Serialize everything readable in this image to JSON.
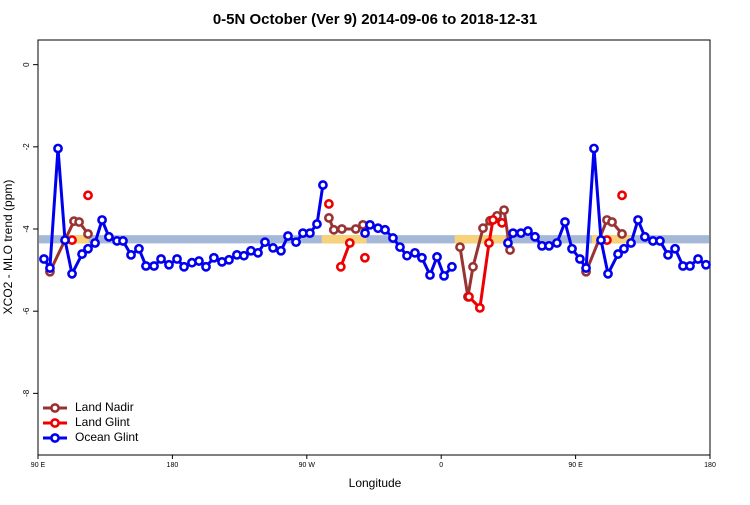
{
  "chart_data": {
    "type": "line",
    "title": "0-5N October (Ver 9)   2014-09-06 to 2018-12-31",
    "x_label": "Longitude",
    "y_label": "XCO2 - MLO trend (ppm)",
    "xlim": [
      90,
      540
    ],
    "ylim": [
      -9.5,
      0.6
    ],
    "xticks": [
      {
        "value": 90,
        "label": "90 E"
      },
      180,
      {
        "value": 270,
        "label": "90 W"
      },
      0,
      {
        "value": 450,
        "label": "90 E"
      },
      180
    ],
    "yticks": [
      0,
      -2,
      -4,
      -6,
      -8
    ],
    "legend": "bottom-left",
    "band": {
      "low": -4.35,
      "high": -4.15,
      "color": "#a5b8d8"
    },
    "highlights": {
      "color": "#f7d27a",
      "ranges": [
        [
          111,
          124
        ],
        [
          280,
          310
        ],
        [
          369,
          403
        ],
        [
          461,
          487
        ]
      ]
    },
    "series": [
      {
        "name": "Land Nadir",
        "color": "#993333",
        "x": [
          98.0,
          114.1,
          117.5,
          123.5,
          null,
          284.8,
          288.1,
          293.5,
          302.8,
          307.6,
          null,
          372.6,
          377.9,
          381.3,
          388.0,
          392.7,
          397.4,
          402.1,
          406.1,
          null,
          457.0,
          471.0,
          474.4,
          481.1
        ],
        "values": [
          -5.04,
          -3.81,
          -3.83,
          -4.12,
          null,
          -3.73,
          -4.02,
          -4.0,
          -4.0,
          -3.9,
          null,
          -4.44,
          -5.65,
          -4.92,
          -3.98,
          -3.8,
          -3.68,
          -3.54,
          -4.51,
          null,
          -5.04,
          -3.78,
          -3.83,
          -4.12
        ]
      },
      {
        "name": "Land Glint",
        "color": "#ee0000",
        "x": [
          112.8,
          null,
          123.5,
          null,
          284.8,
          null,
          292.8,
          298.8,
          null,
          308.9,
          null,
          378.6,
          385.9,
          392.0,
          394.7,
          400.7,
          null,
          471.0,
          null,
          481.1
        ],
        "values": [
          -4.27,
          null,
          -3.18,
          null,
          -3.39,
          null,
          -4.92,
          -4.34,
          null,
          -4.7,
          null,
          -5.65,
          -5.92,
          -4.34,
          -3.78,
          -3.85,
          null,
          -4.27,
          null,
          -3.18
        ]
      },
      {
        "name": "Ocean Glint",
        "color": "#0000ee",
        "x": [
          94.0,
          98.0,
          103.4,
          108.1,
          112.8,
          119.5,
          123.5,
          128.2,
          132.9,
          137.5,
          142.9,
          146.9,
          152.3,
          157.6,
          162.3,
          167.7,
          172.4,
          177.7,
          183.1,
          187.8,
          193.1,
          197.8,
          202.5,
          207.8,
          213.2,
          217.9,
          223.2,
          227.9,
          232.6,
          237.3,
          242.0,
          247.4,
          252.7,
          257.4,
          262.8,
          267.4,
          272.1,
          276.8,
          280.8,
          null,
          309.0,
          312.3,
          317.7,
          322.4,
          327.7,
          332.4,
          337.1,
          342.4,
          347.1,
          352.5,
          357.2,
          361.9,
          367.2,
          null,
          404.7,
          408.1,
          413.4,
          418.1,
          422.8,
          427.5,
          432.2,
          437.5,
          442.9,
          447.6,
          452.9,
          457.0,
          462.3,
          467.0,
          471.7,
          478.4,
          482.4,
          487.1,
          491.8,
          496.4,
          501.8,
          506.5,
          511.9,
          516.6,
          521.9,
          526.6,
          532.0,
          537.3
        ],
        "values": [
          -4.73,
          -4.95,
          -2.04,
          -4.27,
          -5.09,
          -4.61,
          -4.48,
          -4.34,
          -3.78,
          -4.19,
          -4.29,
          -4.29,
          -4.63,
          -4.48,
          -4.9,
          -4.9,
          -4.73,
          -4.87,
          -4.73,
          -4.92,
          -4.82,
          -4.78,
          -4.92,
          -4.7,
          -4.8,
          -4.75,
          -4.63,
          -4.65,
          -4.53,
          -4.58,
          -4.32,
          -4.46,
          -4.53,
          -4.17,
          -4.32,
          -4.1,
          -4.1,
          -3.88,
          -2.93,
          null,
          -4.1,
          -3.9,
          -3.98,
          -4.02,
          -4.22,
          -4.44,
          -4.65,
          -4.58,
          -4.7,
          -5.12,
          -4.68,
          -5.14,
          -4.92,
          null,
          -4.34,
          -4.1,
          -4.1,
          -4.05,
          -4.19,
          -4.41,
          -4.41,
          -4.34,
          -3.83,
          -4.48,
          -4.73,
          -4.95,
          -2.04,
          -4.27,
          -5.09,
          -4.61,
          -4.48,
          -4.34,
          -3.78,
          -4.19,
          -4.29,
          -4.29,
          -4.63,
          -4.48,
          -4.9,
          -4.9,
          -4.73,
          -4.87
        ]
      }
    ]
  }
}
